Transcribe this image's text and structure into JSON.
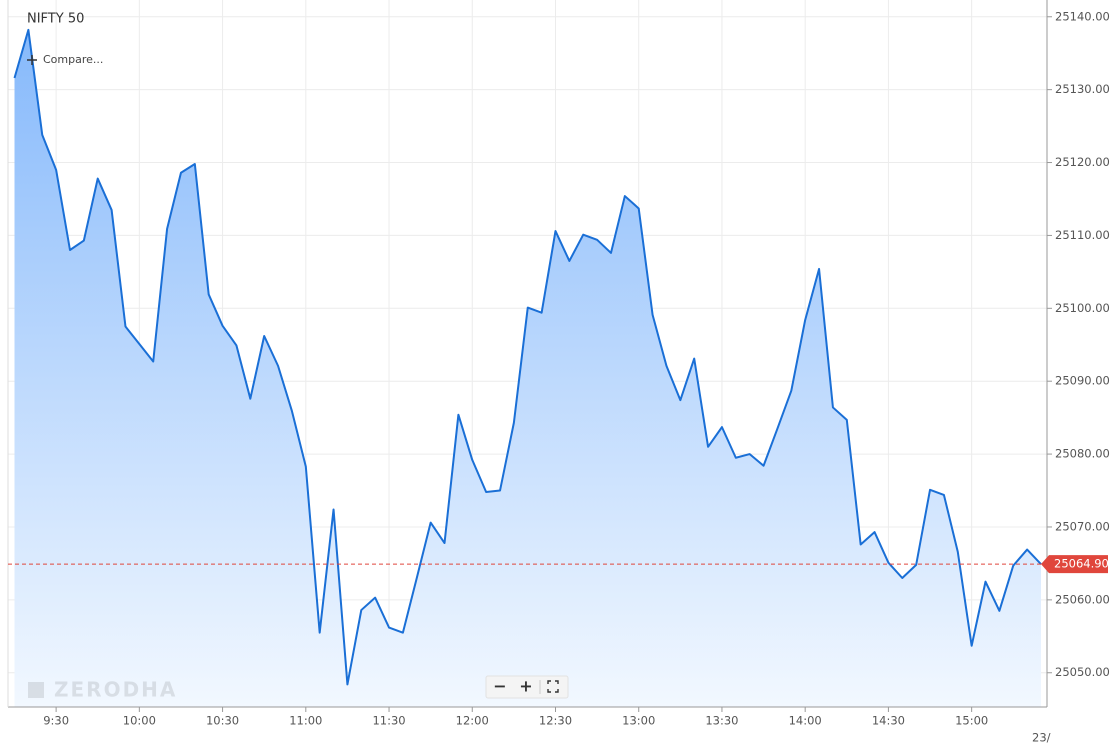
{
  "chart_data": {
    "type": "line",
    "title": "NIFTY 50",
    "compare_label": "Compare...",
    "watermark": "ZERODHA",
    "zoom_out": "−",
    "zoom_in": "+",
    "x": [
      "9:15",
      "9:20",
      "9:25",
      "9:30",
      "9:35",
      "9:40",
      "9:45",
      "9:50",
      "9:55",
      "10:00",
      "10:05",
      "10:10",
      "10:15",
      "10:20",
      "10:25",
      "10:30",
      "10:35",
      "10:40",
      "10:45",
      "10:50",
      "10:55",
      "11:00",
      "11:05",
      "11:10",
      "11:15",
      "11:20",
      "11:25",
      "11:30",
      "11:35",
      "11:40",
      "11:45",
      "11:50",
      "11:55",
      "12:00",
      "12:05",
      "12:10",
      "12:15",
      "12:20",
      "12:25",
      "12:30",
      "12:35",
      "12:40",
      "12:45",
      "12:50",
      "12:55",
      "13:00",
      "13:05",
      "13:10",
      "13:15",
      "13:20",
      "13:25",
      "13:30",
      "13:35",
      "13:40",
      "13:45",
      "13:50",
      "13:55",
      "14:00",
      "14:05",
      "14:10",
      "14:15",
      "14:20",
      "14:25",
      "14:30",
      "14:35",
      "14:40",
      "14:45",
      "14:50",
      "14:55",
      "15:00",
      "15:05",
      "15:10",
      "15:15",
      "15:20",
      "15:25"
    ],
    "series": [
      {
        "name": "NIFTY 50",
        "color": "#1a6fd6",
        "values": [
          25131.6,
          25138.2,
          25123.8,
          25119.0,
          25108.0,
          25109.3,
          25117.8,
          25113.5,
          25097.5,
          25095.1,
          25092.7,
          25110.9,
          25118.6,
          25119.8,
          25101.9,
          25097.6,
          25094.9,
          25087.6,
          25096.2,
          25092.1,
          25085.9,
          25078.3,
          25055.5,
          25072.4,
          25048.4,
          25058.6,
          25060.3,
          25056.2,
          25055.5,
          25063.0,
          25070.6,
          25067.8,
          25085.4,
          25079.2,
          25074.8,
          25075.0,
          25084.3,
          25100.1,
          25099.4,
          25110.6,
          25106.5,
          25110.1,
          25109.4,
          25107.6,
          25115.4,
          25113.7,
          25099.1,
          25092.1,
          25087.4,
          25093.1,
          25081.0,
          25083.7,
          25079.5,
          25080.0,
          25078.4,
          25083.5,
          25088.7,
          25098.4,
          25105.4,
          25086.4,
          25084.7,
          25067.6,
          25069.3,
          25065.1,
          25063.0,
          25064.8,
          25075.1,
          25074.4,
          25066.6,
          25053.7,
          25062.5,
          25058.5,
          25064.7,
          25066.9,
          25064.9
        ]
      }
    ],
    "ylim": [
      25045.3,
      25142.3
    ],
    "yticks": [
      {
        "value": 25050,
        "label": "25050.00"
      },
      {
        "value": 25060,
        "label": "25060.00"
      },
      {
        "value": 25070,
        "label": "25070.00"
      },
      {
        "value": 25080,
        "label": "25080.00"
      },
      {
        "value": 25090,
        "label": "25090.00"
      },
      {
        "value": 25100,
        "label": "25100.00"
      },
      {
        "value": 25110,
        "label": "25110.00"
      },
      {
        "value": 25120,
        "label": "25120.00"
      },
      {
        "value": 25130,
        "label": "25130.00"
      },
      {
        "value": 25140,
        "label": "25140.00"
      }
    ],
    "xticks": [
      "9:30",
      "10:00",
      "10:30",
      "11:00",
      "11:30",
      "12:00",
      "12:30",
      "13:00",
      "13:30",
      "14:00",
      "14:30",
      "15:00"
    ],
    "date_edge_label": "23/",
    "last_price": {
      "value": 25064.9,
      "label": "25064.90",
      "color": "#e0463c"
    },
    "grid": true
  }
}
